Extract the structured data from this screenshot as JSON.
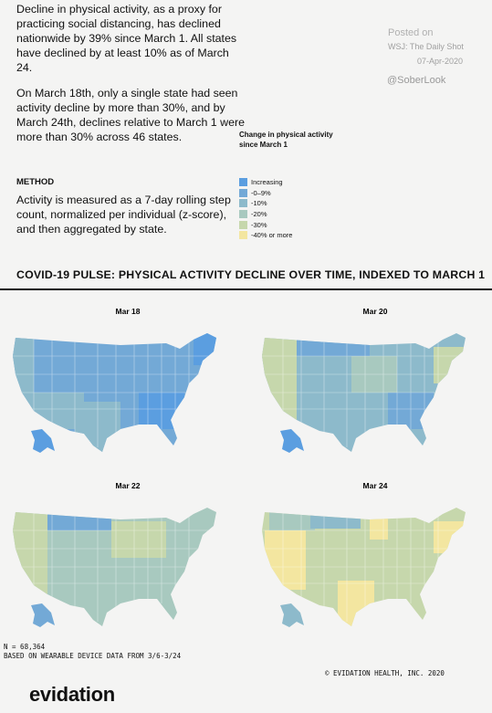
{
  "intro": {
    "paragraphs": [
      "Decline in physical activity, as a proxy for practicing social distancing, has declined nationwide by 39% since March 1. All states have declined by at least 10% as of March 24.",
      "On March 18th, only a single state had seen activity decline by more than 30%, and by March 24th, declines relative to March 1 were more than 30% across 46 states."
    ]
  },
  "posted": {
    "label": "Posted on",
    "source": "WSJ: The Daily Shot",
    "date": "07-Apr-2020",
    "handle": "@SoberLook"
  },
  "legend": {
    "title": "Change in physical activity since March 1",
    "items": [
      {
        "label": "Increasing",
        "color": "#5b9ee0"
      },
      {
        "label": "-0–9%",
        "color": "#73a9d6"
      },
      {
        "label": "-10%",
        "color": "#8dbacb"
      },
      {
        "label": "-20%",
        "color": "#a8c9bf"
      },
      {
        "label": "-30%",
        "color": "#c6d7ac"
      },
      {
        "label": "-40% or more",
        "color": "#f3e6a0"
      }
    ]
  },
  "method": {
    "heading": "METHOD",
    "text": "Activity is measured as a 7-day rolling step count, normalized per individual (z-score), and then aggregated by state."
  },
  "section_title": "COVID-19 PULSE: PHYSICAL ACTIVITY DECLINE OVER TIME, INDEXED TO MARCH 1",
  "maps": [
    {
      "label": "Mar 18"
    },
    {
      "label": "Mar 20"
    },
    {
      "label": "Mar 22"
    },
    {
      "label": "Mar 24"
    }
  ],
  "footer": {
    "n": "N = 68,364",
    "note": "BASED ON WEARABLE DEVICE DATA FROM 3/6-3/24",
    "copyright": "© EVIDATION HEALTH, INC. 2020",
    "logo": "evidation"
  }
}
